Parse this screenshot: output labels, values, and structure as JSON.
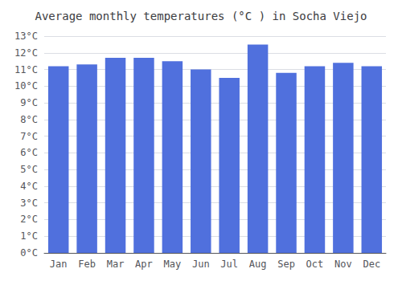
{
  "chart_data": {
    "type": "bar",
    "title": "Average monthly temperatures (°C ) in Socha Viejo",
    "categories": [
      "Jan",
      "Feb",
      "Mar",
      "Apr",
      "May",
      "Jun",
      "Jul",
      "Aug",
      "Sep",
      "Oct",
      "Nov",
      "Dec"
    ],
    "values": [
      11.2,
      11.3,
      11.7,
      11.7,
      11.5,
      11.0,
      10.5,
      12.5,
      10.8,
      11.2,
      11.4,
      11.2
    ],
    "ylim": [
      0,
      13
    ],
    "yticks": [
      {
        "value": 0,
        "label": "0°C"
      },
      {
        "value": 1,
        "label": "1°C"
      },
      {
        "value": 2,
        "label": "2°C"
      },
      {
        "value": 3,
        "label": "3°C"
      },
      {
        "value": 4,
        "label": "4°C"
      },
      {
        "value": 5,
        "label": "5°C"
      },
      {
        "value": 6,
        "label": "6°C"
      },
      {
        "value": 7,
        "label": "7°C"
      },
      {
        "value": 8,
        "label": "8°C"
      },
      {
        "value": 9,
        "label": "9°C"
      },
      {
        "value": 10,
        "label": "10°C"
      },
      {
        "value": 11,
        "label": "11°C"
      },
      {
        "value": 12,
        "label": "12°C"
      },
      {
        "value": 13,
        "label": "13°C"
      }
    ],
    "grid": true
  }
}
